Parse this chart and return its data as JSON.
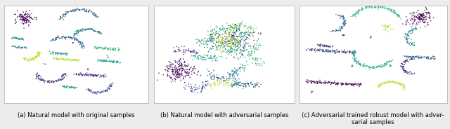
{
  "fig_width": 6.4,
  "fig_height": 1.84,
  "dpi": 100,
  "background_color": "#ececec",
  "panel_bg": "#ffffff",
  "captions": [
    "(a) Natural model with original samples",
    "(b) Natural model with adversarial samples",
    "(c) Adversarial trained robust model with adver-\nsarial samples"
  ],
  "caption_fontsize": 6.0,
  "n_classes": 10,
  "colormap": "viridis",
  "marker_size": 1.2,
  "alpha": 0.95
}
